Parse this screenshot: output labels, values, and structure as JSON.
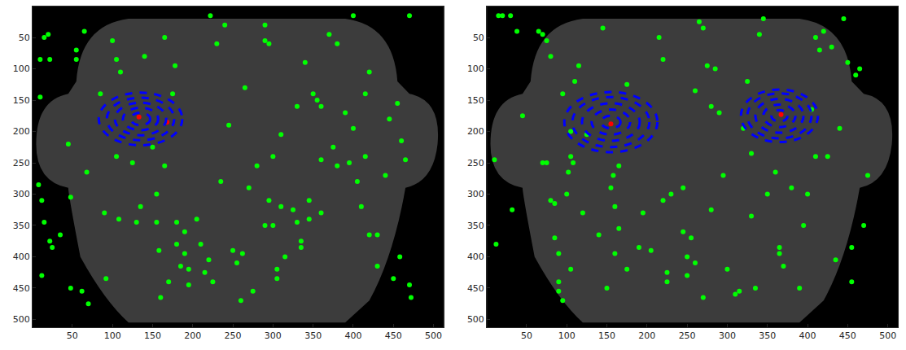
{
  "chart_data": [
    {
      "type": "scatter",
      "xlim": [
        0.5,
        512.5
      ],
      "ylim": [
        512.5,
        0.5
      ],
      "xticks": [
        50,
        100,
        150,
        200,
        250,
        300,
        350,
        400,
        450,
        500
      ],
      "yticks": [
        50,
        100,
        150,
        200,
        250,
        300,
        350,
        400,
        450,
        500
      ],
      "grid": false,
      "series": [
        {
          "color": "#00ff00",
          "marker": "circle",
          "points": [
            [
              10,
              85
            ],
            [
              15,
              50
            ],
            [
              20,
              45
            ],
            [
              22,
              85
            ],
            [
              10,
              145
            ],
            [
              8,
              285
            ],
            [
              12,
              310
            ],
            [
              15,
              345
            ],
            [
              22,
              375
            ],
            [
              25,
              385
            ],
            [
              12,
              430
            ],
            [
              35,
              365
            ],
            [
              45,
              220
            ],
            [
              48,
              305
            ],
            [
              48,
              450
            ],
            [
              55,
              70
            ],
            [
              55,
              85
            ],
            [
              65,
              40
            ],
            [
              62,
              455
            ],
            [
              70,
              475
            ],
            [
              68,
              265
            ],
            [
              85,
              140
            ],
            [
              90,
              330
            ],
            [
              92,
              435
            ],
            [
              105,
              240
            ],
            [
              108,
              340
            ],
            [
              100,
              55
            ],
            [
              105,
              85
            ],
            [
              110,
              105
            ],
            [
              125,
              250
            ],
            [
              130,
              345
            ],
            [
              135,
              320
            ],
            [
              140,
              80
            ],
            [
              150,
              225
            ],
            [
              155,
              300
            ],
            [
              155,
              345
            ],
            [
              158,
              390
            ],
            [
              160,
              465
            ],
            [
              165,
              50
            ],
            [
              165,
              255
            ],
            [
              170,
              440
            ],
            [
              175,
              140
            ],
            [
              178,
              95
            ],
            [
              180,
              345
            ],
            [
              180,
              380
            ],
            [
              185,
              415
            ],
            [
              190,
              360
            ],
            [
              190,
              395
            ],
            [
              195,
              420
            ],
            [
              195,
              445
            ],
            [
              205,
              340
            ],
            [
              210,
              380
            ],
            [
              215,
              425
            ],
            [
              220,
              405
            ],
            [
              222,
              15
            ],
            [
              225,
              440
            ],
            [
              230,
              60
            ],
            [
              235,
              280
            ],
            [
              240,
              30
            ],
            [
              245,
              190
            ],
            [
              250,
              390
            ],
            [
              255,
              410
            ],
            [
              260,
              470
            ],
            [
              262,
              395
            ],
            [
              265,
              130
            ],
            [
              270,
              290
            ],
            [
              275,
              455
            ],
            [
              280,
              255
            ],
            [
              290,
              30
            ],
            [
              290,
              55
            ],
            [
              290,
              350
            ],
            [
              295,
              60
            ],
            [
              295,
              310
            ],
            [
              300,
              240
            ],
            [
              305,
              420
            ],
            [
              305,
              435
            ],
            [
              310,
              205
            ],
            [
              310,
              320
            ],
            [
              315,
              400
            ],
            [
              325,
              325
            ],
            [
              330,
              345
            ],
            [
              330,
              160
            ],
            [
              335,
              375
            ],
            [
              335,
              385
            ],
            [
              340,
              90
            ],
            [
              345,
              310
            ],
            [
              345,
              340
            ],
            [
              350,
              140
            ],
            [
              355,
              150
            ],
            [
              360,
              160
            ],
            [
              360,
              245
            ],
            [
              360,
              330
            ],
            [
              370,
              45
            ],
            [
              375,
              225
            ],
            [
              380,
              255
            ],
            [
              395,
              250
            ],
            [
              400,
              15
            ],
            [
              400,
              195
            ],
            [
              405,
              280
            ],
            [
              410,
              320
            ],
            [
              415,
              140
            ],
            [
              420,
              105
            ],
            [
              420,
              365
            ],
            [
              430,
              365
            ],
            [
              430,
              415
            ],
            [
              440,
              270
            ],
            [
              445,
              180
            ],
            [
              450,
              435
            ],
            [
              455,
              155
            ],
            [
              460,
              215
            ],
            [
              465,
              245
            ],
            [
              470,
              15
            ],
            [
              470,
              445
            ],
            [
              472,
              465
            ],
            [
              458,
              400
            ],
            [
              415,
              240
            ],
            [
              390,
              170
            ],
            [
              380,
              60
            ],
            [
              300,
              350
            ]
          ]
        },
        {
          "color": "#ff0000",
          "marker": "circle",
          "points": [
            [
              133,
              177
            ],
            [
              168,
              185
            ]
          ]
        }
      ],
      "ellipses": [
        {
          "color": "#0000ff",
          "line_style": "dash",
          "cx": 135,
          "cy": 180,
          "rx": [
            12,
            22,
            32,
            42,
            52
          ],
          "ry": [
            10,
            18,
            26,
            34,
            42
          ]
        }
      ]
    },
    {
      "type": "scatter",
      "xlim": [
        0.5,
        512.5
      ],
      "ylim": [
        512.5,
        0.5
      ],
      "xticks": [
        50,
        100,
        150,
        200,
        250,
        300,
        350,
        400,
        450,
        500
      ],
      "yticks": [
        50,
        100,
        150,
        200,
        250,
        300,
        350,
        400,
        450,
        500
      ],
      "grid": false,
      "series": [
        {
          "color": "#00ff00",
          "marker": "circle",
          "points": [
            [
              15,
              15
            ],
            [
              20,
              15
            ],
            [
              30,
              15
            ],
            [
              10,
              245
            ],
            [
              12,
              380
            ],
            [
              32,
              325
            ],
            [
              38,
              40
            ],
            [
              45,
              175
            ],
            [
              65,
              40
            ],
            [
              70,
              45
            ],
            [
              75,
              55
            ],
            [
              75,
              250
            ],
            [
              70,
              250
            ],
            [
              80,
              80
            ],
            [
              80,
              310
            ],
            [
              85,
              315
            ],
            [
              85,
              370
            ],
            [
              90,
              395
            ],
            [
              90,
              440
            ],
            [
              90,
              455
            ],
            [
              95,
              140
            ],
            [
              95,
              470
            ],
            [
              100,
              300
            ],
            [
              102,
              265
            ],
            [
              105,
              240
            ],
            [
              108,
              250
            ],
            [
              105,
              420
            ],
            [
              110,
              120
            ],
            [
              115,
              95
            ],
            [
              120,
              330
            ],
            [
              125,
              205
            ],
            [
              140,
              365
            ],
            [
              145,
              35
            ],
            [
              150,
              450
            ],
            [
              155,
              290
            ],
            [
              158,
              270
            ],
            [
              160,
              320
            ],
            [
              160,
              395
            ],
            [
              165,
              255
            ],
            [
              165,
              355
            ],
            [
              175,
              125
            ],
            [
              175,
              420
            ],
            [
              190,
              385
            ],
            [
              195,
              330
            ],
            [
              205,
              390
            ],
            [
              215,
              50
            ],
            [
              220,
              310
            ],
            [
              220,
              85
            ],
            [
              225,
              425
            ],
            [
              225,
              440
            ],
            [
              230,
              300
            ],
            [
              245,
              290
            ],
            [
              245,
              360
            ],
            [
              250,
              400
            ],
            [
              250,
              430
            ],
            [
              255,
              370
            ],
            [
              260,
              135
            ],
            [
              260,
              410
            ],
            [
              265,
              25
            ],
            [
              270,
              35
            ],
            [
              270,
              465
            ],
            [
              275,
              95
            ],
            [
              280,
              160
            ],
            [
              285,
              100
            ],
            [
              280,
              325
            ],
            [
              290,
              170
            ],
            [
              295,
              270
            ],
            [
              300,
              420
            ],
            [
              310,
              460
            ],
            [
              315,
              455
            ],
            [
              320,
              195
            ],
            [
              325,
              120
            ],
            [
              330,
              235
            ],
            [
              330,
              335
            ],
            [
              335,
              450
            ],
            [
              340,
              45
            ],
            [
              345,
              20
            ],
            [
              350,
              300
            ],
            [
              360,
              265
            ],
            [
              365,
              385
            ],
            [
              365,
              395
            ],
            [
              370,
              415
            ],
            [
              380,
              290
            ],
            [
              390,
              450
            ],
            [
              395,
              350
            ],
            [
              400,
              300
            ],
            [
              405,
              165
            ],
            [
              410,
              240
            ],
            [
              410,
              50
            ],
            [
              415,
              70
            ],
            [
              420,
              40
            ],
            [
              425,
              240
            ],
            [
              430,
              65
            ],
            [
              435,
              405
            ],
            [
              440,
              195
            ],
            [
              445,
              20
            ],
            [
              450,
              90
            ],
            [
              455,
              385
            ],
            [
              455,
              440
            ],
            [
              460,
              110
            ],
            [
              465,
              100
            ],
            [
              470,
              350
            ],
            [
              475,
              270
            ],
            [
              105,
              200
            ]
          ]
        },
        {
          "color": "#ff0000",
          "marker": "circle",
          "points": [
            [
              155,
              188
            ],
            [
              367,
              173
            ]
          ]
        }
      ],
      "ellipses": [
        {
          "color": "#0000ff",
          "line_style": "dash",
          "cx": 155,
          "cy": 185,
          "rx": [
            12,
            24,
            36,
            48,
            58
          ],
          "ry": [
            10,
            20,
            30,
            40,
            48
          ]
        },
        {
          "color": "#0000ff",
          "line_style": "dash",
          "cx": 365,
          "cy": 175,
          "rx": [
            10,
            20,
            30,
            40,
            48
          ],
          "ry": [
            9,
            18,
            27,
            36,
            42
          ]
        }
      ]
    }
  ]
}
